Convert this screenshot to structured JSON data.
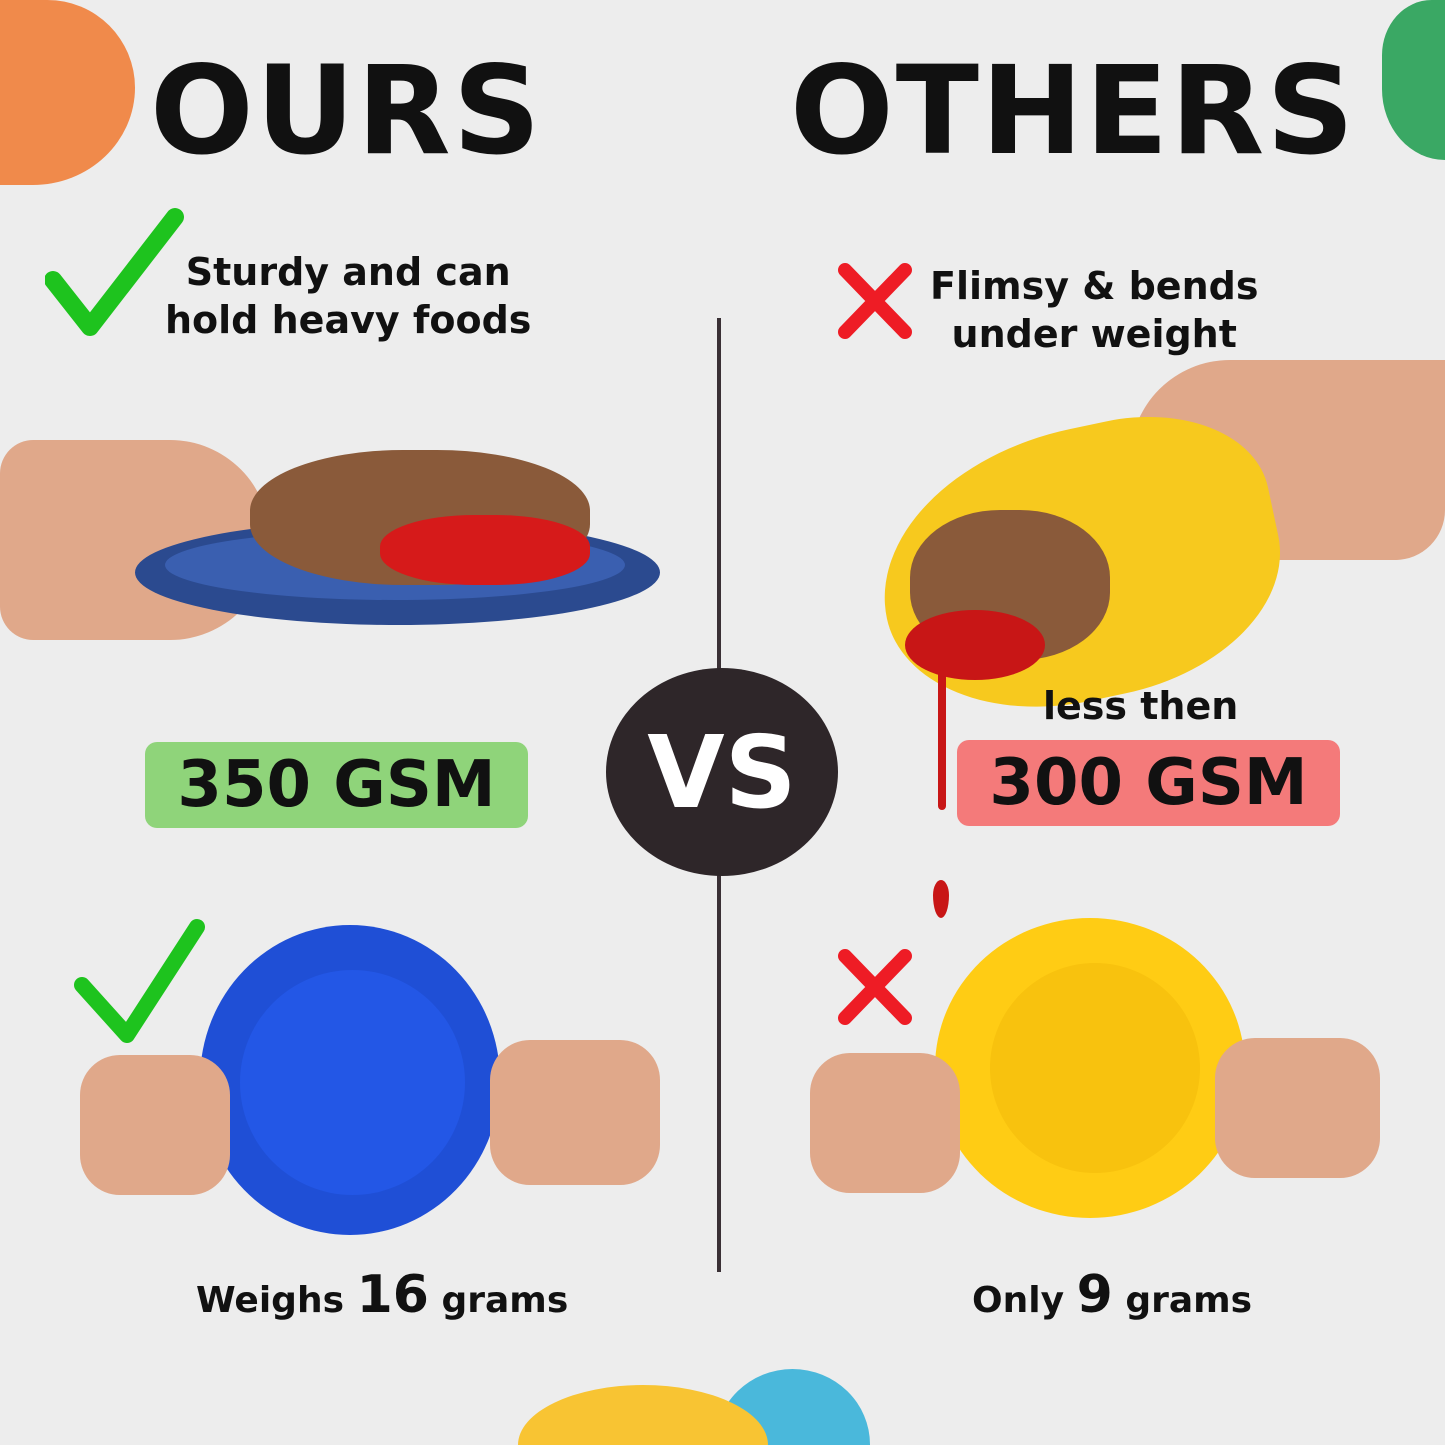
{
  "ours": {
    "heading": "OURS",
    "claim_line1": "Sturdy and can",
    "claim_line2": "hold heavy foods",
    "gsm": "350 GSM",
    "weight_prefix": "Weighs",
    "weight_value": "16",
    "weight_unit": "grams",
    "icon": "check-icon"
  },
  "others": {
    "heading": "OTHERS",
    "claim_line1": "Flimsy & bends",
    "claim_line2": "under weight",
    "gsm_prefix": "less then",
    "gsm": "300 GSM",
    "weight_prefix": "Only",
    "weight_value": "9",
    "weight_unit": "grams",
    "icon": "cross-icon"
  },
  "vs_label": "VS",
  "colors": {
    "background": "#ededed",
    "check": "#1ec31e",
    "cross": "#ee1c25",
    "ours_badge": "#8fd47a",
    "others_badge": "#f47a7a",
    "vs_circle": "#2e2629",
    "ours_plate": "#1f4fd6",
    "others_plate": "#ffcc14",
    "deco_orange": "#f08a4b",
    "deco_green": "#3aa864",
    "deco_yellow": "#f8c433",
    "deco_blue": "#4ab8db"
  }
}
